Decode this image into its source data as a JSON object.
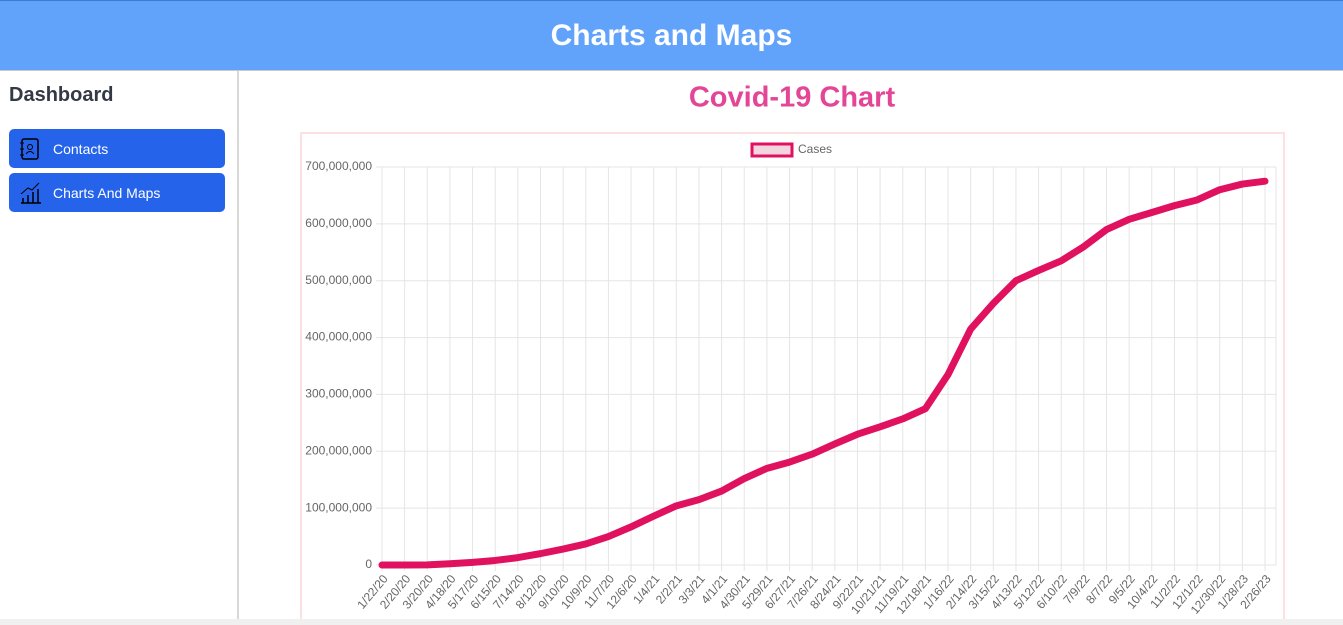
{
  "header": {
    "title": "Charts and Maps"
  },
  "sidebar": {
    "title": "Dashboard",
    "items": [
      "Contacts",
      "Charts And Maps"
    ]
  },
  "chart_data": {
    "type": "line",
    "title": "Covid-19 Chart",
    "categories": [
      "1/22/20",
      "2/20/20",
      "3/20/20",
      "4/18/20",
      "5/17/20",
      "6/15/20",
      "7/14/20",
      "8/12/20",
      "9/10/20",
      "10/9/20",
      "11/7/20",
      "12/6/20",
      "1/4/21",
      "2/2/21",
      "3/3/21",
      "4/1/21",
      "4/30/21",
      "5/29/21",
      "6/27/21",
      "7/26/21",
      "8/24/21",
      "9/22/21",
      "10/21/21",
      "11/19/21",
      "12/18/21",
      "1/16/22",
      "2/14/22",
      "3/15/22",
      "4/13/22",
      "5/12/22",
      "6/10/22",
      "7/9/22",
      "8/7/22",
      "9/5/22",
      "10/4/22",
      "11/2/22",
      "12/1/22",
      "12/30/22",
      "1/28/23",
      "2/26/23"
    ],
    "series": [
      {
        "name": "Cases",
        "color": "#e0115f",
        "fill": "#f3d5e0",
        "values": [
          0,
          80000,
          300000,
          2300000,
          4700000,
          8000000,
          13000000,
          20000000,
          28000000,
          37000000,
          50000000,
          67000000,
          86000000,
          104000000,
          115000000,
          130000000,
          152000000,
          170000000,
          181000000,
          195000000,
          213000000,
          230000000,
          243000000,
          257000000,
          275000000,
          335000000,
          415000000,
          460000000,
          500000000,
          518000000,
          535000000,
          560000000,
          590000000,
          608000000,
          620000000,
          632000000,
          642000000,
          660000000,
          670000000,
          675000000
        ]
      }
    ],
    "ylim": [
      0,
      700000000
    ],
    "yticks": [
      {
        "value": 0,
        "label": "0"
      },
      {
        "value": 100000000,
        "label": "100,000,000"
      },
      {
        "value": 200000000,
        "label": "200,000,000"
      },
      {
        "value": 300000000,
        "label": "300,000,000"
      },
      {
        "value": 400000000,
        "label": "400,000,000"
      },
      {
        "value": 500000000,
        "label": "500,000,000"
      },
      {
        "value": 600000000,
        "label": "600,000,000"
      },
      {
        "value": 700000000,
        "label": "700,000,000"
      }
    ],
    "grid": true,
    "legend": "top"
  }
}
